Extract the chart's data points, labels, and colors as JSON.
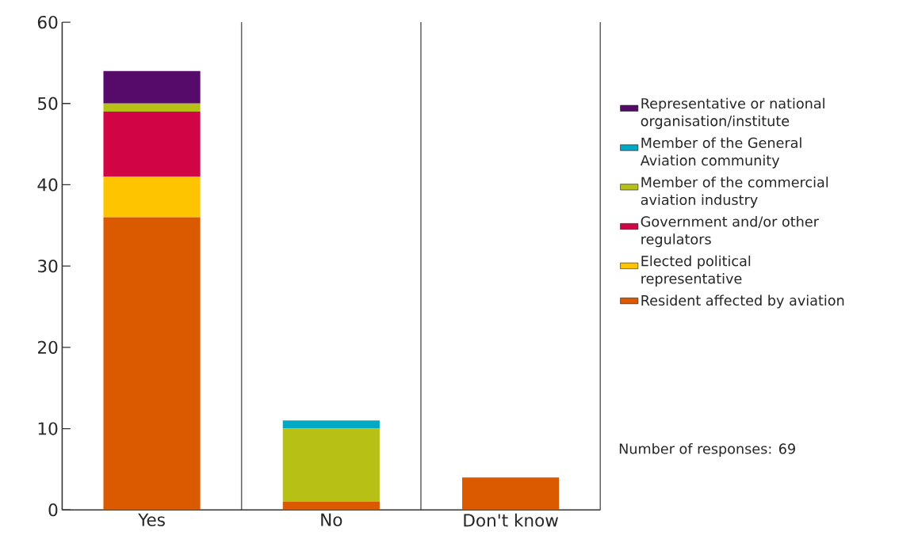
{
  "chart_data": {
    "type": "bar",
    "stacked": true,
    "categories": [
      "Yes",
      "No",
      "Don't know"
    ],
    "series": [
      {
        "name": "Resident affected by aviation",
        "color": "#db5a00",
        "values": [
          36,
          1,
          4
        ]
      },
      {
        "name": "Elected political representative",
        "color": "#ffc400",
        "values": [
          5,
          0,
          0
        ]
      },
      {
        "name": "Government and/or other regulators",
        "color": "#d10545",
        "values": [
          8,
          0,
          0
        ]
      },
      {
        "name": "Member of the commercial aviation industry",
        "color": "#b7c015",
        "values": [
          1,
          9,
          0
        ]
      },
      {
        "name": "Member of the General Aviation community",
        "color": "#00a9c4",
        "values": [
          0,
          1,
          0
        ]
      },
      {
        "name": "Representative or national organisation/institute",
        "color": "#560b6b",
        "values": [
          4,
          0,
          0
        ]
      }
    ],
    "ylim": [
      0,
      60
    ],
    "yticks": [
      0,
      10,
      20,
      30,
      40,
      50,
      60
    ],
    "grid": "x",
    "legend": "right",
    "annotations": [
      "Number of responses: 69"
    ]
  }
}
